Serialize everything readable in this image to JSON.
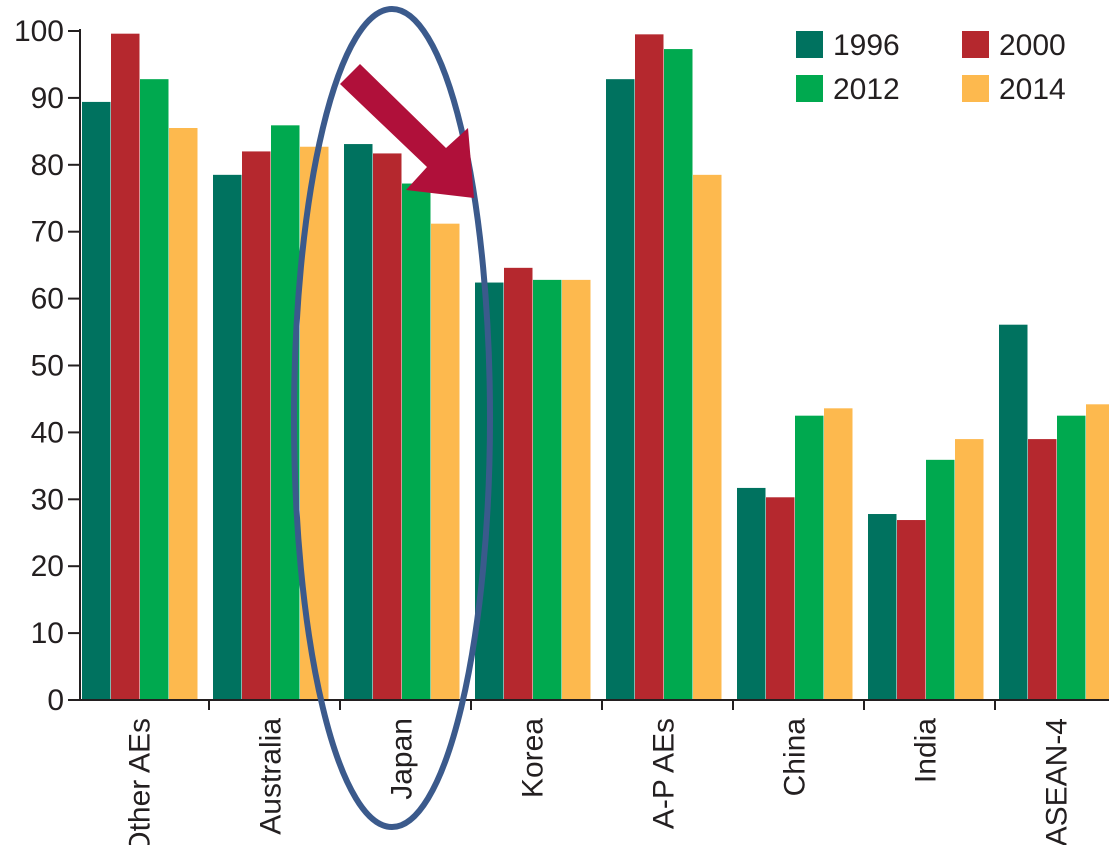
{
  "chart_data": {
    "type": "bar",
    "title": "",
    "xlabel": "",
    "ylabel": "",
    "ylim": [
      0,
      100
    ],
    "yticks": [
      0,
      10,
      20,
      30,
      40,
      50,
      60,
      70,
      80,
      90,
      100
    ],
    "grid": false,
    "legend_position": "top-right",
    "categories": [
      "Other AEs",
      "Australia",
      "Japan",
      "Korea",
      "A-P AEs",
      "China",
      "India",
      "ASEAN-4"
    ],
    "series": [
      {
        "name": "1996",
        "color": "#00725f",
        "values": [
          89.4,
          78.5,
          83.1,
          62.4,
          92.8,
          31.7,
          27.8,
          56.1
        ]
      },
      {
        "name": "2000",
        "color": "#b5282e",
        "values": [
          99.6,
          82.0,
          81.7,
          64.6,
          99.5,
          30.3,
          26.9,
          39.0
        ]
      },
      {
        "name": "2012",
        "color": "#00a94f",
        "values": [
          92.8,
          85.9,
          77.2,
          62.8,
          97.3,
          42.5,
          35.9,
          42.5
        ]
      },
      {
        "name": "2014",
        "color": "#fdb94e",
        "values": [
          85.5,
          82.7,
          71.2,
          62.8,
          78.5,
          43.6,
          39.0,
          44.2
        ]
      }
    ],
    "annotations": [
      {
        "type": "ellipse",
        "target": "Japan",
        "color": "#3b5a8c"
      },
      {
        "type": "arrow",
        "target": "Japan",
        "direction": "down-right",
        "color": "#b0103a"
      }
    ]
  }
}
